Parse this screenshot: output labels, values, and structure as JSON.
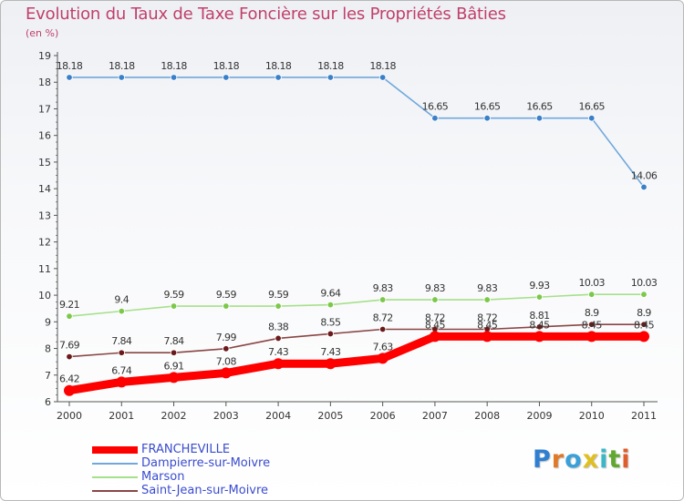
{
  "colors": {
    "title": "#c0406a",
    "axis": "#555555",
    "label": "#3a4ccf"
  },
  "logo": {
    "text": "Proxiti",
    "letter_colors": [
      "#2f7fd0",
      "#e07a28",
      "#3aa0d8",
      "#e0c020",
      "#3ab8c8",
      "#60a830",
      "#e05c2a"
    ]
  },
  "chart_data": {
    "type": "line",
    "title": "Evolution du Taux de Taxe Foncière sur les Propriétés Bâties",
    "subtitle": "(en %)",
    "xlabel": "",
    "ylabel": "",
    "ylim": [
      6,
      19
    ],
    "yticks": [
      "6",
      "7",
      "8",
      "9",
      "10",
      "11",
      "12",
      "13",
      "14",
      "15",
      "16",
      "17",
      "18",
      "19"
    ],
    "grid": false,
    "legend_position": "bottom-left",
    "categories": [
      "2000",
      "2001",
      "2002",
      "2003",
      "2004",
      "2005",
      "2006",
      "2007",
      "2008",
      "2009",
      "2010",
      "2011"
    ],
    "series": [
      {
        "name": "FRANCHEVILLE",
        "color": "#ff0000",
        "style": "thick",
        "values": [
          6.42,
          6.74,
          6.91,
          7.08,
          7.43,
          7.43,
          7.63,
          8.45,
          8.45,
          8.45,
          8.45,
          8.45
        ],
        "labels": [
          "6.42",
          "6.74",
          "6.91",
          "7.08",
          "7.43",
          "7.43",
          "7.63",
          "8.45",
          "8.45",
          "8.45",
          "8.45",
          "8.45"
        ]
      },
      {
        "name": "Dampierre-sur-Moivre",
        "color": "#6fa8dc",
        "marker_color": "#3a80c8",
        "style": "thin",
        "values": [
          18.18,
          18.18,
          18.18,
          18.18,
          18.18,
          18.18,
          18.18,
          16.65,
          16.65,
          16.65,
          16.65,
          14.06
        ],
        "labels": [
          "18.18",
          "18.18",
          "18.18",
          "18.18",
          "18.18",
          "18.18",
          "18.18",
          "16.65",
          "16.65",
          "16.65",
          "16.65",
          "14.06"
        ]
      },
      {
        "name": "Marson",
        "color": "#a6e08a",
        "marker_color": "#7cc84a",
        "style": "thin",
        "values": [
          9.21,
          9.4,
          9.59,
          9.59,
          9.59,
          9.64,
          9.83,
          9.83,
          9.83,
          9.93,
          10.03,
          10.03
        ],
        "labels": [
          "9.21",
          "9.4",
          "9.59",
          "9.59",
          "9.59",
          "9.64",
          "9.83",
          "9.83",
          "9.83",
          "9.93",
          "10.03",
          "10.03"
        ]
      },
      {
        "name": "Saint-Jean-sur-Moivre",
        "color": "#8a4545",
        "marker_color": "#6a1a1a",
        "style": "thin",
        "values": [
          7.69,
          7.84,
          7.84,
          7.99,
          8.38,
          8.55,
          8.72,
          8.72,
          8.72,
          8.81,
          8.9,
          8.9
        ],
        "labels": [
          "7.69",
          "7.84",
          "7.84",
          "7.99",
          "8.38",
          "8.55",
          "8.72",
          "8.72",
          "8.72",
          "8.81",
          "8.9",
          "8.9"
        ]
      }
    ]
  }
}
